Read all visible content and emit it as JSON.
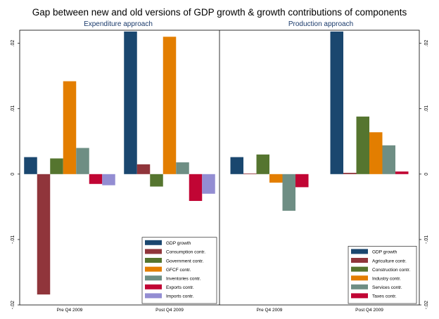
{
  "chart_data": {
    "type": "bar",
    "title": "Gap between new and old versions of GDP growth & growth contributions of components",
    "ylim": [
      -0.02,
      0.022
    ],
    "yticks": [
      -0.02,
      -0.01,
      0,
      0.01,
      0.02
    ],
    "ytick_labels": [
      "-.02",
      "-.01",
      "0",
      ".01",
      ".02"
    ],
    "grid": false,
    "panels": [
      {
        "subtitle": "Expenditure approach",
        "categories": [
          "Pre Q4 2009",
          "Post Q4 2009"
        ],
        "legend_position": "bottom-right",
        "series": [
          {
            "name": "GDP growth",
            "color": "#1a476f",
            "values": [
              0.0026,
              0.0218
            ]
          },
          {
            "name": "Consumption contr.",
            "color": "#90353b",
            "values": [
              -0.0184,
              0.0015
            ]
          },
          {
            "name": "Government contr.",
            "color": "#55752f",
            "values": [
              0.0024,
              -0.0019
            ]
          },
          {
            "name": "GFCF contr.",
            "color": "#e37e00",
            "values": [
              0.0142,
              0.021
            ]
          },
          {
            "name": "Inventories contr.",
            "color": "#6e8e84",
            "values": [
              0.004,
              0.0018
            ]
          },
          {
            "name": "Exports contr.",
            "color": "#c10534",
            "values": [
              -0.0015,
              -0.0041
            ]
          },
          {
            "name": "Imports contr.",
            "color": "#938dd2",
            "values": [
              -0.0017,
              -0.003
            ]
          }
        ]
      },
      {
        "subtitle": "Production approach",
        "categories": [
          "Pre Q4 2009",
          "Post Q4 2009"
        ],
        "legend_position": "bottom-right",
        "series": [
          {
            "name": "GDP growth",
            "color": "#1a476f",
            "values": [
              0.0026,
              0.0218
            ]
          },
          {
            "name": "Agriculture contr.",
            "color": "#90353b",
            "values": [
              0.0001,
              0.0002
            ]
          },
          {
            "name": "Construction contr.",
            "color": "#55752f",
            "values": [
              0.003,
              0.0088
            ]
          },
          {
            "name": "Industry contr.",
            "color": "#e37e00",
            "values": [
              -0.0013,
              0.0064
            ]
          },
          {
            "name": "Services contr.",
            "color": "#6e8e84",
            "values": [
              -0.0056,
              0.0044
            ]
          },
          {
            "name": "Taxes contr.",
            "color": "#c10534",
            "values": [
              -0.002,
              0.0004
            ]
          }
        ]
      }
    ]
  }
}
